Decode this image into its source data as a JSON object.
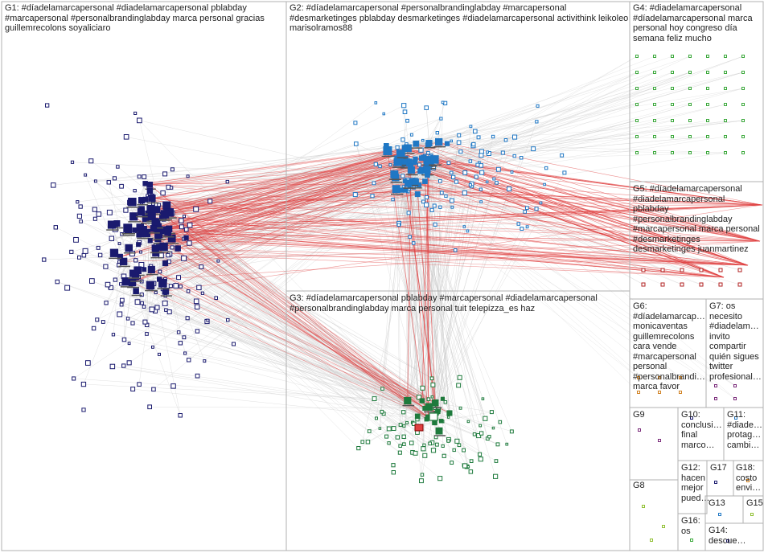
{
  "groups": [
    {
      "id": "g1",
      "label": "G1: #díadelamarcapersonal #diadelamarcapersonal pblabday #marcapersonal #personalbrandinglabday marca personal gracias guillemrecolons soyaliciaro"
    },
    {
      "id": "g2",
      "label": "G2: #díadelamarcapersonal #personalbrandinglabday #marcapersonal #desmarketinges pblabday desmarketinges #diadelamarcapersonal activithink leikoleo marisolramos88"
    },
    {
      "id": "g3",
      "label": "G3: #díadelamarcapersonal pblabday #marcapersonal #diadelamarcapersonal #personalbrandinglabday marca personal tuit telepizza_es haz"
    },
    {
      "id": "g4",
      "label": "G4: #diadelamarcapersonal #díadelamarcapersonal marca personal hoy congreso día semana feliz mucho"
    },
    {
      "id": "g5",
      "label": "G5: #díadelamarcapersonal #diadelamarcapersonal pblabday #personalbrandinglabday #marcapersonal marca personal #desmarketinges desmarketinges juanmartinez"
    },
    {
      "id": "g6",
      "label": "G6: #díadelamarcap… monicaventas guillemrecolons cara vende #marcapersonal personal #personalbrandi… marca favor"
    },
    {
      "id": "g7",
      "label": "G7: os necesito #diadelam… invito compartir quién sigues twitter profesional…"
    },
    {
      "id": "g8",
      "label": "G8"
    },
    {
      "id": "g9",
      "label": "G9"
    },
    {
      "id": "g10",
      "label": "G10: conclusi… final marco…"
    },
    {
      "id": "g11",
      "label": "G11: #diade… protag… cambi…"
    },
    {
      "id": "g12",
      "label": "G12: hacen mejor pued…"
    },
    {
      "id": "g13",
      "label": "G13"
    },
    {
      "id": "g14",
      "label": "G14: descue…"
    },
    {
      "id": "g15",
      "label": "G15"
    },
    {
      "id": "g16",
      "label": "G16: os"
    },
    {
      "id": "g17",
      "label": "G17"
    },
    {
      "id": "g18",
      "label": "G18: costo envi…"
    }
  ],
  "colors": {
    "g1": "#1a1a6e",
    "g2": "#1f77c4",
    "g3": "#1e7a3c",
    "g4": "#3aa83a",
    "g5": "#b22222",
    "g6": "#d08020",
    "g7": "#7a2a7a",
    "g8": "#8fbf30",
    "edge_gray": "#c8c8c8",
    "edge_red": "#e04040",
    "border": "#b0b0b0"
  }
}
